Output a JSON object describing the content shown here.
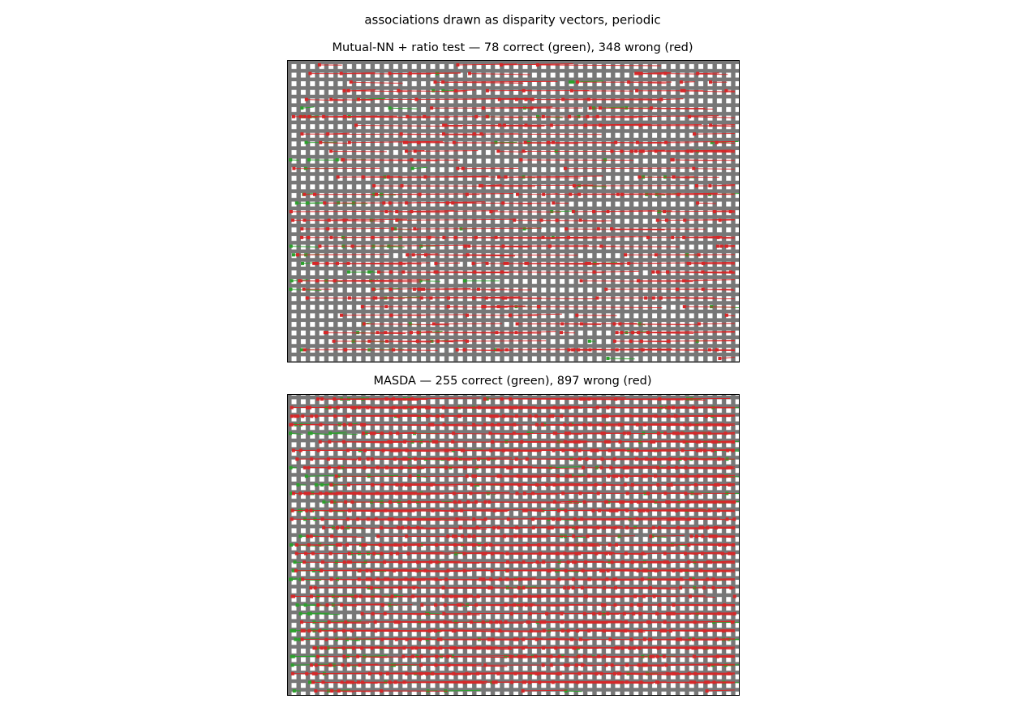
{
  "figure": {
    "title": "associations drawn as disparity vectors, periodic",
    "panels": [
      {
        "title": "Mutual-NN + ratio test — 78 correct (green), 348 wrong (red)"
      },
      {
        "title": "MASDA — 255 correct (green), 897 wrong (red)"
      }
    ]
  }
}
